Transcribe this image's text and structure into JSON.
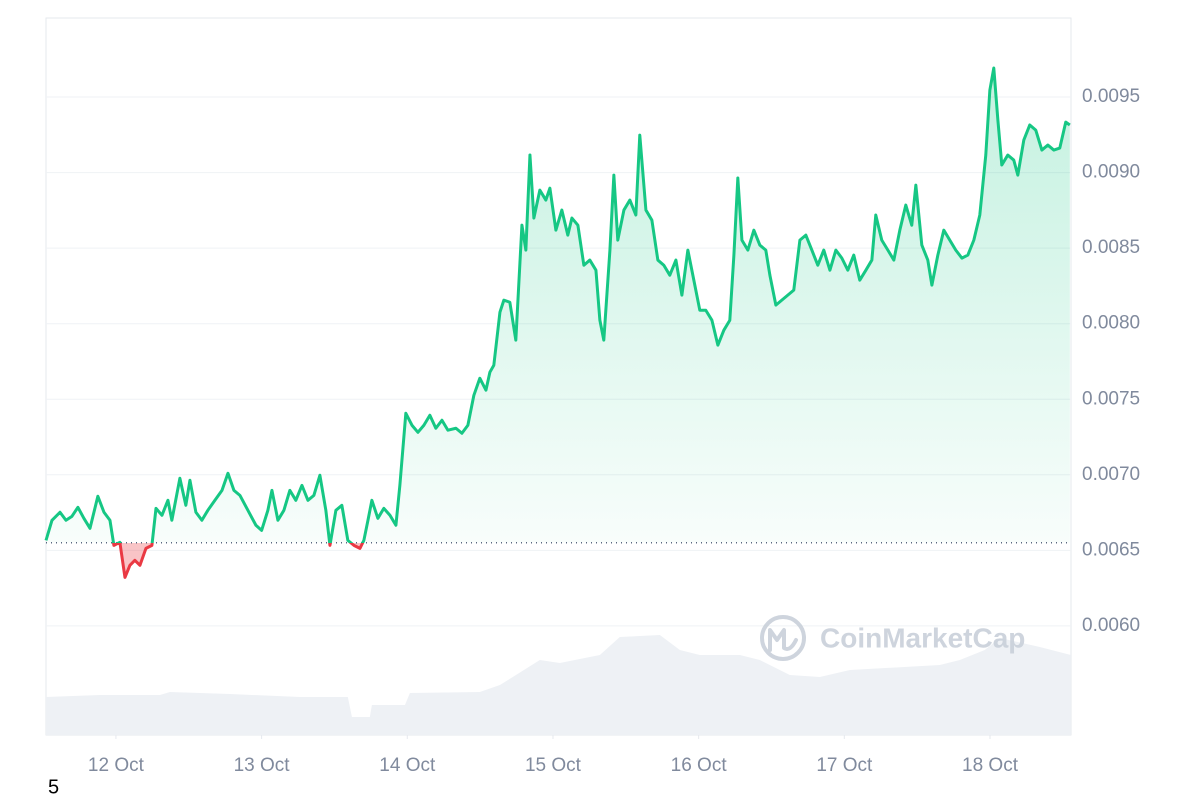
{
  "chart_data": {
    "type": "line",
    "x": [
      11.52,
      11.561,
      11.616,
      11.657,
      11.698,
      11.739,
      11.78,
      11.822,
      11.876,
      11.918,
      11.959,
      11.986,
      12.027,
      12.062,
      12.096,
      12.13,
      12.165,
      12.206,
      12.247,
      12.275,
      12.316,
      12.357,
      12.384,
      12.439,
      12.48,
      12.508,
      12.549,
      12.59,
      12.631,
      12.679,
      12.728,
      12.769,
      12.81,
      12.851,
      12.906,
      12.961,
      13.0,
      13.043,
      13.071,
      13.112,
      13.153,
      13.194,
      13.235,
      13.277,
      13.318,
      13.359,
      13.4,
      13.441,
      13.469,
      13.51,
      13.551,
      13.592,
      13.634,
      13.675,
      13.702,
      13.73,
      13.757,
      13.798,
      13.839,
      13.881,
      13.922,
      13.949,
      13.99,
      14.032,
      14.073,
      14.114,
      14.155,
      14.196,
      14.238,
      14.279,
      14.334,
      14.375,
      14.416,
      14.457,
      14.498,
      14.54,
      14.567,
      14.594,
      14.636,
      14.663,
      14.704,
      14.745,
      14.787,
      14.814,
      14.842,
      14.869,
      14.91,
      14.951,
      14.979,
      15.02,
      15.061,
      15.102,
      15.13,
      15.171,
      15.212,
      15.253,
      15.295,
      15.322,
      15.349,
      15.391,
      15.418,
      15.445,
      15.487,
      15.528,
      15.569,
      15.596,
      15.638,
      15.679,
      15.72,
      15.761,
      15.802,
      15.844,
      15.885,
      15.926,
      15.967,
      16.008,
      16.049,
      16.091,
      16.132,
      16.173,
      16.214,
      16.242,
      16.269,
      16.297,
      16.338,
      16.379,
      16.42,
      16.461,
      16.489,
      16.53,
      16.571,
      16.612,
      16.653,
      16.695,
      16.736,
      16.777,
      16.818,
      16.859,
      16.901,
      16.942,
      16.983,
      17.024,
      17.065,
      17.106,
      17.148,
      17.189,
      17.216,
      17.257,
      17.299,
      17.34,
      17.381,
      17.422,
      17.463,
      17.491,
      17.532,
      17.573,
      17.601,
      17.642,
      17.683,
      17.724,
      17.765,
      17.807,
      17.848,
      17.889,
      17.93,
      17.971,
      17.999,
      18.026,
      18.054,
      18.081,
      18.122,
      18.163,
      18.191,
      18.232,
      18.273,
      18.314,
      18.356,
      18.397,
      18.438,
      18.479,
      18.52,
      18.548
    ],
    "values": [
      0.006566,
      0.006699,
      0.006752,
      0.006699,
      0.006725,
      0.006785,
      0.006712,
      0.006646,
      0.006858,
      0.006752,
      0.006699,
      0.006533,
      0.006553,
      0.006321,
      0.006401,
      0.006434,
      0.006401,
      0.006513,
      0.006533,
      0.006778,
      0.006732,
      0.006831,
      0.006699,
      0.006977,
      0.006798,
      0.006964,
      0.006752,
      0.006699,
      0.006765,
      0.006831,
      0.006897,
      0.00701,
      0.006897,
      0.006864,
      0.006765,
      0.006666,
      0.006632,
      0.006765,
      0.006897,
      0.006699,
      0.006765,
      0.006897,
      0.006831,
      0.00693,
      0.006831,
      0.006864,
      0.006997,
      0.006765,
      0.006533,
      0.006765,
      0.006798,
      0.006566,
      0.006533,
      0.006513,
      0.006566,
      0.006699,
      0.006831,
      0.006712,
      0.006778,
      0.006732,
      0.006666,
      0.00693,
      0.007407,
      0.007328,
      0.007281,
      0.007328,
      0.007394,
      0.007308,
      0.007361,
      0.007295,
      0.007308,
      0.007275,
      0.007328,
      0.007526,
      0.007639,
      0.00756,
      0.007679,
      0.007725,
      0.008076,
      0.008156,
      0.008142,
      0.007891,
      0.008652,
      0.008487,
      0.009116,
      0.008699,
      0.008884,
      0.008818,
      0.008897,
      0.008619,
      0.008752,
      0.008586,
      0.008699,
      0.008652,
      0.008387,
      0.008421,
      0.008354,
      0.008023,
      0.007891,
      0.008487,
      0.008983,
      0.008553,
      0.008752,
      0.008818,
      0.008719,
      0.009248,
      0.008752,
      0.008685,
      0.008421,
      0.008387,
      0.008321,
      0.008421,
      0.008189,
      0.008487,
      0.008288,
      0.008089,
      0.008089,
      0.008023,
      0.007858,
      0.007957,
      0.008023,
      0.008454,
      0.008964,
      0.008553,
      0.008487,
      0.008619,
      0.00852,
      0.008487,
      0.008321,
      0.008123,
      0.008156,
      0.008189,
      0.008222,
      0.008553,
      0.008586,
      0.008487,
      0.008387,
      0.008487,
      0.008354,
      0.008487,
      0.008434,
      0.008354,
      0.008454,
      0.008288,
      0.008354,
      0.008421,
      0.008719,
      0.008553,
      0.008487,
      0.008421,
      0.008619,
      0.008785,
      0.008652,
      0.008917,
      0.00852,
      0.008421,
      0.008255,
      0.008454,
      0.008619,
      0.008553,
      0.008487,
      0.008434,
      0.008454,
      0.008553,
      0.008719,
      0.009116,
      0.009546,
      0.009692,
      0.009348,
      0.00905,
      0.009116,
      0.009083,
      0.008983,
      0.009215,
      0.009315,
      0.009281,
      0.009149,
      0.009182,
      0.009149,
      0.009162,
      0.009334,
      0.009315
    ],
    "color": "#16c784",
    "down_color": "#ea3943",
    "baseline": 0.00655,
    "volume": {
      "x": [
        11.52,
        11.89,
        12.302,
        12.371,
        12.782,
        13.263,
        13.592,
        13.62,
        13.743,
        13.757,
        13.984,
        14.018,
        14.498,
        14.636,
        14.91,
        15.047,
        15.322,
        15.459,
        15.734,
        15.871,
        16.008,
        16.283,
        16.42,
        16.626,
        16.832,
        17.038,
        17.655,
        17.793,
        17.964,
        18.067,
        18.342,
        18.555
      ],
      "values": [
        38,
        40,
        40,
        43,
        41,
        38,
        38,
        18,
        18,
        30,
        30,
        42,
        43,
        50,
        75,
        72,
        80,
        98,
        100,
        85,
        80,
        80,
        75,
        60,
        58,
        65,
        70,
        75,
        85,
        97,
        88,
        80
      ],
      "color": "#eef1f5"
    },
    "xlim": [
      11.52,
      18.556
    ],
    "xticks": [
      {
        "value": 12,
        "label": "12 Oct"
      },
      {
        "value": 13,
        "label": "13 Oct"
      },
      {
        "value": 14,
        "label": "14 Oct"
      },
      {
        "value": 15,
        "label": "15 Oct"
      },
      {
        "value": 16,
        "label": "16 Oct"
      },
      {
        "value": 17,
        "label": "17 Oct"
      },
      {
        "value": 18,
        "label": "18 Oct"
      }
    ],
    "ylim": [
      0.005278,
      0.010023
    ],
    "yticks": [
      {
        "value": 0.006,
        "label": "0.0060"
      },
      0.0065,
      {
        "value": 0.007,
        "label": "0.0070"
      },
      0.0075,
      {
        "value": 0.008,
        "label": "0.0080"
      },
      0.0085,
      {
        "value": 0.009,
        "label": "0.0090"
      },
      0.0095
    ],
    "grid": true,
    "watermark": "CoinMarketCap",
    "footnote": "5"
  }
}
